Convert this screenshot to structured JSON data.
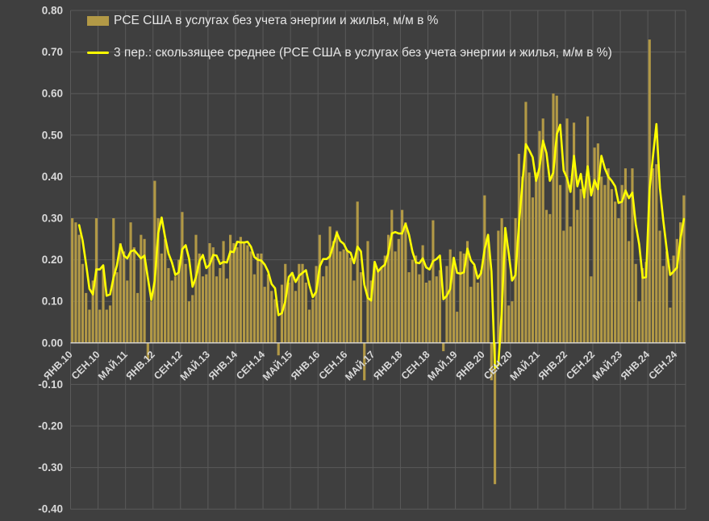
{
  "colors": {
    "background": "#3f3f3f",
    "bar": "#b29946",
    "line": "#ffff00",
    "gridline": "#5a5a5a",
    "zero_axis": "#d9d9d9",
    "tick_text": "#d9d9d9",
    "legend_text": "#e6e6e6"
  },
  "chart_data": {
    "type": "bar",
    "title": "",
    "legend": [
      {
        "label": "PCE США в услугах без учета энергии и жилья, м/м в %",
        "series_type": "bar",
        "color": "#b29946"
      },
      {
        "label": "3 пер.: скользящее среднее (PCE США в услугах без учета энергии и жилья, м/м в %)",
        "series_type": "line",
        "color": "#ffff00"
      }
    ],
    "legend_position": "top-left",
    "grid": true,
    "ylim": [
      -0.4,
      0.8
    ],
    "y_tick_labels": [
      "0.80",
      "0.70",
      "0.60",
      "0.50",
      "0.40",
      "0.30",
      "0.20",
      "0.10",
      "0.00",
      "-0.10",
      "-0.20",
      "-0.30",
      "-0.40"
    ],
    "x_tick_labels": [
      "ЯНВ.10",
      "СЕН.10",
      "МАЙ.11",
      "ЯНВ.12",
      "СЕН.12",
      "МАЙ.13",
      "ЯНВ.14",
      "СЕН.14",
      "МАЙ.15",
      "ЯНВ.16",
      "СЕН.16",
      "МАЙ.17",
      "ЯНВ.18",
      "СЕН.18",
      "МАЙ.19",
      "ЯНВ.20",
      "СЕН.20",
      "МАЙ.21",
      "ЯНВ.22",
      "СЕН.22",
      "МАЙ.23",
      "ЯНВ.24",
      "СЕН.24"
    ],
    "x_tick_every": 8,
    "start_period": "2010-01",
    "end_period": "2024-11",
    "moving_average_window": 3,
    "values": [
      0.3,
      0.29,
      0.26,
      0.19,
      0.12,
      0.08,
      0.15,
      0.3,
      0.08,
      0.18,
      0.08,
      0.09,
      0.3,
      0.17,
      0.24,
      0.22,
      0.15,
      0.29,
      0.23,
      0.12,
      0.26,
      0.25,
      -0.04,
      0.1,
      0.39,
      0.3,
      0.215,
      0.25,
      0.18,
      0.15,
      0.16,
      0.2,
      0.315,
      0.19,
      0.1,
      0.115,
      0.26,
      0.215,
      0.16,
      0.165,
      0.24,
      0.23,
      0.16,
      0.18,
      0.245,
      0.155,
      0.26,
      0.24,
      0.23,
      0.255,
      0.24,
      0.235,
      0.22,
      0.165,
      0.215,
      0.215,
      0.135,
      0.165,
      0.125,
      0.105,
      -0.03,
      0.14,
      0.19,
      0.145,
      0.17,
      0.125,
      0.19,
      0.19,
      0.145,
      0.08,
      0.105,
      0.185,
      0.26,
      0.16,
      0.185,
      0.28,
      0.245,
      0.27,
      0.22,
      0.225,
      0.22,
      0.205,
      0.15,
      0.34,
      0.17,
      -0.09,
      0.245,
      0.15,
      0.19,
      0.175,
      0.18,
      0.21,
      0.26,
      0.32,
      0.22,
      0.25,
      0.32,
      0.29,
      0.17,
      0.2,
      0.21,
      0.165,
      0.235,
      0.145,
      0.15,
      0.295,
      0.16,
      0.175,
      -0.02,
      0.185,
      0.225,
      0.205,
      0.075,
      0.22,
      0.215,
      0.245,
      0.135,
      0.185,
      0.145,
      0.175,
      0.355,
      0.25,
      -0.09,
      -0.34,
      0.27,
      0.3,
      0.26,
      0.09,
      0.1,
      0.3,
      0.455,
      0.4,
      0.58,
      0.41,
      0.35,
      0.41,
      0.51,
      0.54,
      0.32,
      0.31,
      0.6,
      0.595,
      0.38,
      0.27,
      0.54,
      0.28,
      0.53,
      0.32,
      0.37,
      0.36,
      0.545,
      0.16,
      0.47,
      0.48,
      0.4,
      0.38,
      0.42,
      0.37,
      0.34,
      0.3,
      0.38,
      0.42,
      0.245,
      0.42,
      0.19,
      0.1,
      0.18,
      0.195,
      0.73,
      0.42,
      0.43,
      0.27,
      0.185,
      0.22,
      0.085,
      0.21,
      0.25,
      0.29,
      0.355
    ]
  }
}
